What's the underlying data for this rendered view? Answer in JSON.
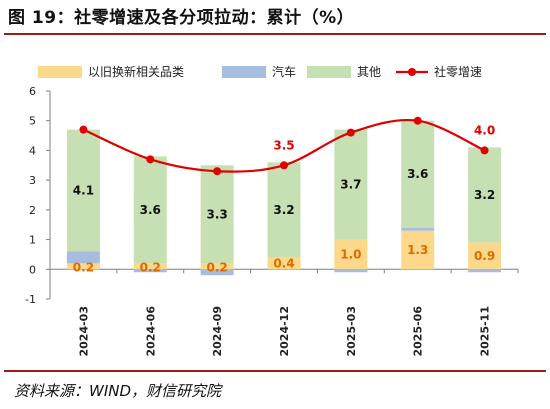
{
  "figure": {
    "title": "图 19：社零增速及各分项拉动：累计（%）",
    "source": "资料来源：WIND，财信研究院"
  },
  "colors": {
    "trade_in": "#fcd98a",
    "auto": "#a7bde0",
    "other": "#c6e0b4",
    "line": "#e00000",
    "rule": "#9c1b1b"
  },
  "chart_data": {
    "type": "bar",
    "stacked": true,
    "categories": [
      "2024-03",
      "2024-06",
      "2024-09",
      "2024-12",
      "2025-03",
      "2025-06",
      "2025-11"
    ],
    "series": [
      {
        "name": "以旧换新相关品类",
        "kind": "bar",
        "color": "#fcd98a",
        "values": [
          0.2,
          0.2,
          0.2,
          0.4,
          1.0,
          1.3,
          0.9
        ],
        "labels": [
          "0.2",
          "0.2",
          "0.2",
          "0.4",
          "1.0",
          "1.3",
          "0.9"
        ]
      },
      {
        "name": "汽车",
        "kind": "bar",
        "color": "#a7bde0",
        "values": [
          0.4,
          -0.1,
          -0.2,
          0.0,
          -0.1,
          0.1,
          -0.1
        ]
      },
      {
        "name": "其他",
        "kind": "bar",
        "color": "#c6e0b4",
        "values": [
          4.1,
          3.6,
          3.3,
          3.2,
          3.7,
          3.6,
          3.2
        ],
        "labels": [
          "4.1",
          "3.6",
          "3.3",
          "3.2",
          "3.7",
          "3.6",
          "3.2"
        ]
      },
      {
        "name": "社零增速",
        "kind": "line",
        "color": "#e00000",
        "values": [
          4.7,
          3.7,
          3.3,
          3.5,
          4.6,
          5.0,
          4.0
        ],
        "labels": [
          "",
          "",
          "",
          "3.5",
          "",
          "",
          "4.0"
        ]
      }
    ],
    "ylim": [
      -1,
      6
    ],
    "yticks": [
      "-1",
      "0",
      "1",
      "2",
      "3",
      "4",
      "5",
      "6"
    ],
    "legend_position": "top",
    "grid": false
  }
}
